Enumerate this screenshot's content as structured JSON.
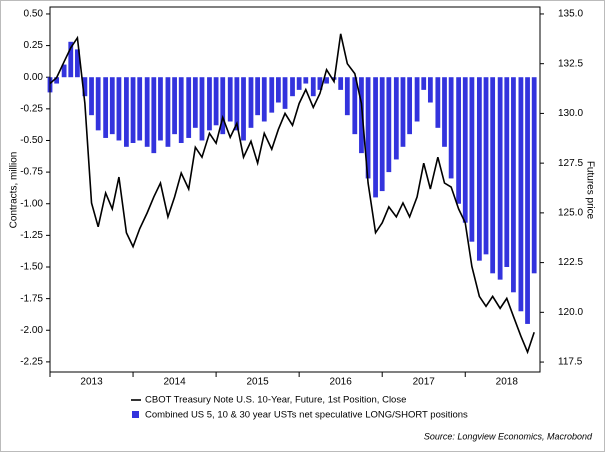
{
  "chart_data": {
    "type": "combo",
    "x": [
      2013.0,
      2013.08,
      2013.17,
      2013.25,
      2013.33,
      2013.42,
      2013.5,
      2013.58,
      2013.67,
      2013.75,
      2013.83,
      2013.92,
      2014.0,
      2014.08,
      2014.17,
      2014.25,
      2014.33,
      2014.42,
      2014.5,
      2014.58,
      2014.67,
      2014.75,
      2014.83,
      2014.92,
      2015.0,
      2015.08,
      2015.17,
      2015.25,
      2015.33,
      2015.42,
      2015.5,
      2015.58,
      2015.67,
      2015.75,
      2015.83,
      2015.92,
      2016.0,
      2016.08,
      2016.17,
      2016.25,
      2016.33,
      2016.42,
      2016.5,
      2016.58,
      2016.67,
      2016.75,
      2016.83,
      2016.92,
      2017.0,
      2017.08,
      2017.17,
      2017.25,
      2017.33,
      2017.42,
      2017.5,
      2017.58,
      2017.67,
      2017.75,
      2017.83,
      2017.92,
      2018.0,
      2018.08,
      2018.17,
      2018.25,
      2018.33,
      2018.42,
      2018.5,
      2018.58,
      2018.67,
      2018.75,
      2018.83
    ],
    "series": [
      {
        "name": "CBOT Treasury Note U.S. 10-Year, Future, 1st Position, Close",
        "type": "line",
        "axis": "y2",
        "color": "#000000",
        "values": [
          131.5,
          131.8,
          132.6,
          133.3,
          133.8,
          130.5,
          125.5,
          124.3,
          126.0,
          125.2,
          126.8,
          124.0,
          123.3,
          124.2,
          125.0,
          125.8,
          126.5,
          124.8,
          125.8,
          127.0,
          126.2,
          128.3,
          127.8,
          129.0,
          128.5,
          129.8,
          128.8,
          129.5,
          127.8,
          128.6,
          127.5,
          129.0,
          128.2,
          129.2,
          130.0,
          129.4,
          130.5,
          131.2,
          130.3,
          131.0,
          132.2,
          131.6,
          134.0,
          132.5,
          132.0,
          130.5,
          126.5,
          124.0,
          124.5,
          125.3,
          124.8,
          125.5,
          124.8,
          125.8,
          127.5,
          126.2,
          127.8,
          126.5,
          126.3,
          125.2,
          124.5,
          122.3,
          120.8,
          120.3,
          120.8,
          120.2,
          120.7,
          119.8,
          118.8,
          118.0,
          119.0
        ]
      },
      {
        "name": "Combined US 5, 10 & 30 year USTs net speculative LONG/SHORT positions",
        "type": "bar",
        "color": "#3333dd",
        "values": [
          -0.12,
          -0.05,
          0.1,
          0.28,
          0.22,
          -0.15,
          -0.3,
          -0.42,
          -0.48,
          -0.45,
          -0.5,
          -0.55,
          -0.52,
          -0.5,
          -0.55,
          -0.6,
          -0.5,
          -0.55,
          -0.45,
          -0.52,
          -0.48,
          -0.4,
          -0.5,
          -0.42,
          -0.38,
          -0.45,
          -0.35,
          -0.42,
          -0.5,
          -0.4,
          -0.3,
          -0.35,
          -0.28,
          -0.2,
          -0.25,
          -0.15,
          -0.1,
          -0.05,
          -0.15,
          -0.1,
          -0.05,
          -0.02,
          -0.1,
          -0.3,
          -0.45,
          -0.6,
          -0.8,
          -0.95,
          -0.9,
          -0.75,
          -0.65,
          -0.55,
          -0.45,
          -0.35,
          -0.1,
          -0.2,
          -0.4,
          -0.55,
          -0.8,
          -1.0,
          -1.15,
          -1.3,
          -1.45,
          -1.4,
          -1.55,
          -1.6,
          -1.5,
          -1.7,
          -1.85,
          -1.95,
          -1.55
        ]
      }
    ],
    "xlim": [
      2013.0,
      2018.9
    ],
    "xticks": [
      2013,
      2014,
      2015,
      2016,
      2017,
      2018
    ],
    "ylabel": "Contracts, million",
    "y2label": "Futures price",
    "ylim": [
      -2.33,
      0.555
    ],
    "yticks": [
      {
        "value": 0.5,
        "label": "0.50"
      },
      {
        "value": 0.25,
        "label": "0.25"
      },
      {
        "value": 0,
        "label": "0.00"
      },
      {
        "value": -0.25,
        "label": "-0.25"
      },
      {
        "value": -0.5,
        "label": "-0.50"
      },
      {
        "value": -0.75,
        "label": "-0.75"
      },
      {
        "value": -1,
        "label": "-1.00"
      },
      {
        "value": -1.25,
        "label": "-1.25"
      },
      {
        "value": -1.5,
        "label": "-1.50"
      },
      {
        "value": -1.75,
        "label": "-1.75"
      },
      {
        "value": -2,
        "label": "-2.00"
      },
      {
        "value": -2.25,
        "label": "-2.25"
      }
    ],
    "y2lim": [
      117.0,
      135.35
    ],
    "y2ticks": [
      {
        "value": 135,
        "label": "135.0"
      },
      {
        "value": 132.5,
        "label": "132.5"
      },
      {
        "value": 130,
        "label": "130.0"
      },
      {
        "value": 127.5,
        "label": "127.5"
      },
      {
        "value": 125,
        "label": "125.0"
      },
      {
        "value": 122.5,
        "label": "122.5"
      },
      {
        "value": 120,
        "label": "120.0"
      },
      {
        "value": 117.5,
        "label": "117.5"
      }
    ],
    "source": "Source: Longview Economics, Macrobond"
  }
}
